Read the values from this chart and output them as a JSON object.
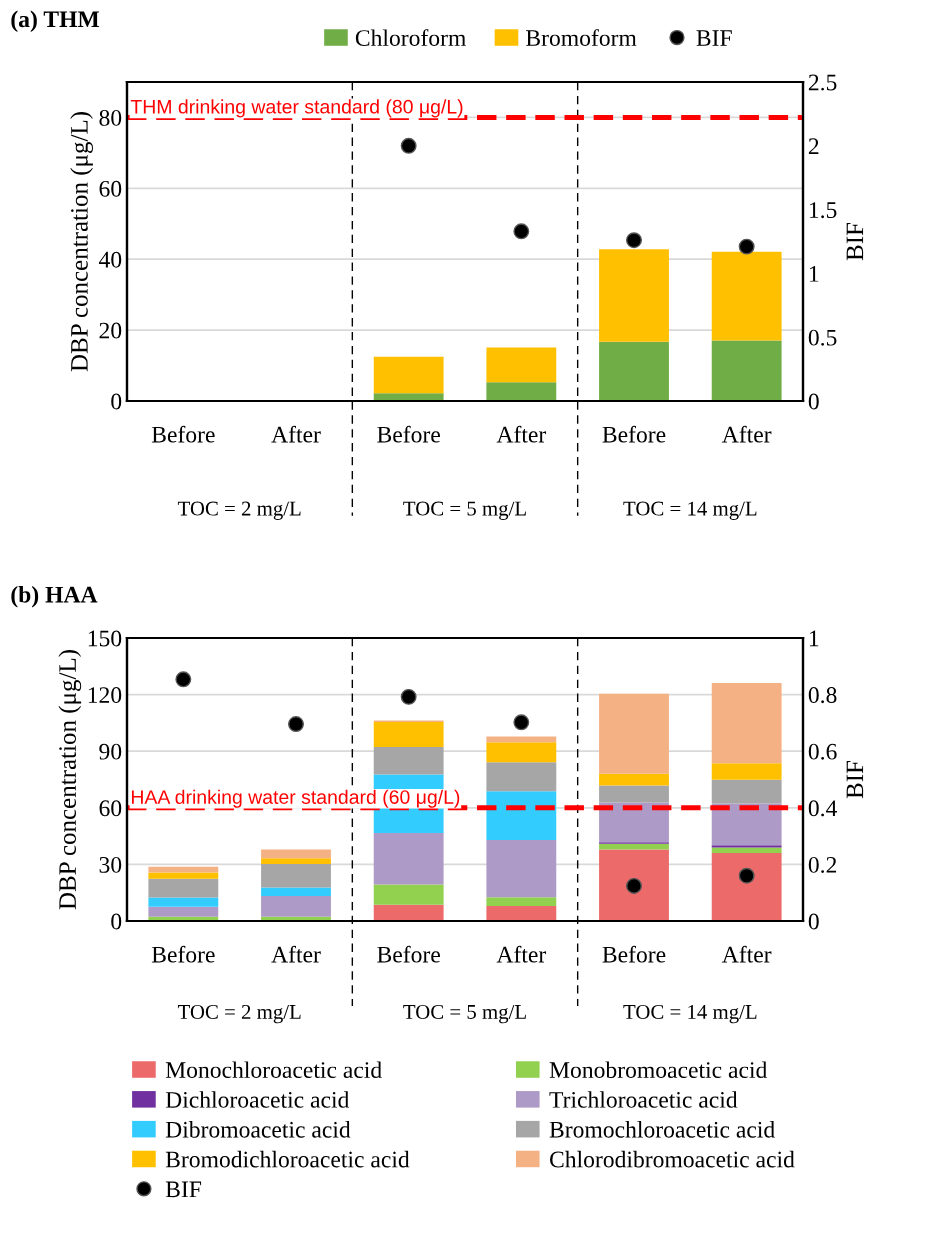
{
  "chart_data": [
    {
      "type": "bar",
      "stacked": true,
      "title": "(a) THM",
      "categories": [
        "Before",
        "After",
        "Before",
        "After",
        "Before",
        "After"
      ],
      "series": [
        {
          "name": "Chloroform",
          "color": "#70ad47",
          "values": [
            null,
            null,
            2.2,
            5.3,
            16.7,
            17.1
          ]
        },
        {
          "name": "Bromoform",
          "color": "#ffc000",
          "values": [
            null,
            null,
            10.3,
            9.8,
            26.1,
            25.0
          ]
        },
        {
          "name": "BIF",
          "type": "scatter",
          "axis": "y2",
          "color": "#000000",
          "values": [
            null,
            null,
            2.0,
            1.33,
            1.26,
            1.21
          ]
        }
      ],
      "ylabel": "DBP concentration (μg/L)",
      "y2label": "BIF",
      "ylim": [
        0,
        90
      ],
      "yticks": [
        0,
        20,
        40,
        60,
        80
      ],
      "y2lim": [
        0,
        2.5
      ],
      "y2ticks": [
        0,
        0.5,
        1,
        1.5,
        2,
        2.5
      ],
      "grid": "y",
      "legend": "top",
      "marker": "circle",
      "ref_lines": [
        {
          "axis": "y",
          "value": 80,
          "label": "THM drinking water standard (80 μg/L)",
          "color": "#ff0000",
          "line_style": "dashed"
        }
      ],
      "annotations": [
        "TOC = 2 mg/L",
        "TOC = 5 mg/L",
        "TOC = 14 mg/L"
      ]
    },
    {
      "type": "bar",
      "stacked": true,
      "title": "(b) HAA",
      "categories": [
        "Before",
        "After",
        "Before",
        "After",
        "Before",
        "After"
      ],
      "series": [
        {
          "name": "Monochloroacetic acid",
          "color": "#ed6a6a",
          "values": [
            0,
            0,
            8.6,
            8.0,
            37.9,
            36.0
          ]
        },
        {
          "name": "Monobromoacetic acid",
          "color": "#92d050",
          "values": [
            2.2,
            2.2,
            10.8,
            4.6,
            3.0,
            3.0
          ]
        },
        {
          "name": "Dichloroacetic acid",
          "color": "#7030a0",
          "values": [
            0,
            0,
            0,
            0,
            0.8,
            1.2
          ]
        },
        {
          "name": "Trichloroacetic acid",
          "color": "#ae9ac6",
          "values": [
            5.3,
            11.1,
            27.3,
            30.3,
            21.1,
            22.1
          ]
        },
        {
          "name": "Dibromoacetic acid",
          "color": "#33ccff",
          "values": [
            5.0,
            4.5,
            31.0,
            25.9,
            0,
            0
          ]
        },
        {
          "name": "Bromochloroacetic acid",
          "color": "#a6a6a6",
          "values": [
            9.9,
            12.4,
            14.5,
            15.3,
            9.0,
            12.6
          ]
        },
        {
          "name": "Bromodichloroacetic acid",
          "color": "#ffc000",
          "values": [
            3.3,
            3.0,
            13.3,
            10.6,
            6.3,
            8.7
          ]
        },
        {
          "name": "Chlorodibromoacetic acid",
          "color": "#f4b183",
          "values": [
            3.0,
            4.7,
            0.8,
            3.1,
            42.3,
            42.6
          ]
        },
        {
          "name": "BIF",
          "type": "scatter",
          "axis": "y2",
          "color": "#000000",
          "values": [
            0.854,
            0.696,
            0.792,
            0.702,
            0.124,
            0.16
          ]
        }
      ],
      "ylabel": "DBP concentration (μg/L)",
      "y2label": "BIF",
      "ylim": [
        0,
        150
      ],
      "yticks": [
        0,
        30,
        60,
        90,
        120,
        150
      ],
      "y2lim": [
        0,
        1
      ],
      "y2ticks": [
        0,
        0.2,
        0.4,
        0.6,
        0.8,
        1
      ],
      "grid": "y",
      "legend": "bottom",
      "marker": "circle",
      "ref_lines": [
        {
          "axis": "y",
          "value": 60,
          "label": "HAA drinking water standard (60 μg/L)",
          "color": "#ff0000",
          "line_style": "dashed"
        }
      ],
      "annotations": [
        "TOC = 2 mg/L",
        "TOC = 5 mg/L",
        "TOC = 14 mg/L"
      ]
    }
  ]
}
